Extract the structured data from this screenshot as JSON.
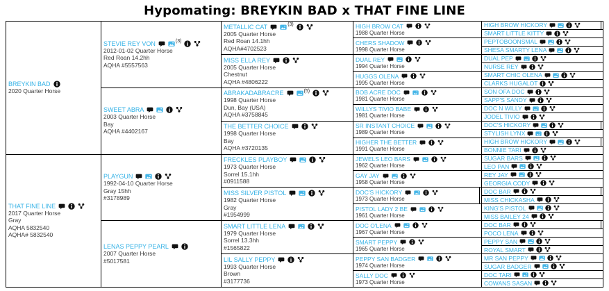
{
  "title": "Hypomating: BREYKIN BAD x THAT FINE LINE",
  "colors": {
    "horse_name_blue": "#35b2e6",
    "photo_icon_blue": "#45b6e8",
    "icon_black": "#111111",
    "border_black": "#000000"
  },
  "pedigree": {
    "generations": [
      {
        "label": "generation-1",
        "cells": [
          {
            "name": "BREYKIN BAD",
            "icons": [
              "info-icon"
            ],
            "details": [
              "2020 Quarter Horse"
            ]
          },
          {
            "name": "THAT FINE LINE",
            "icons": [
              "comment-icon",
              "info-icon",
              "pedigree-icon"
            ],
            "details": [
              "2017 Quarter Horse",
              "Gray",
              "AQHA 5832540",
              "AQHA# 5832540"
            ]
          }
        ]
      },
      {
        "label": "generation-2",
        "cells": [
          {
            "name": "STEVIE REY VON",
            "icons": [
              "comment-icon",
              "photos-icon",
              "info-icon",
              "pedigree-icon"
            ],
            "photos_count": "(3)",
            "details": [
              "2012-01-02 Quarter Horse",
              "Red Roan 14.2hh",
              "AQHA #5557563"
            ]
          },
          {
            "name": "SWEET ABRA",
            "icons": [
              "comment-icon",
              "photos-icon",
              "info-icon",
              "pedigree-icon"
            ],
            "details": [
              "2003 Quarter Horse",
              "Bay",
              "AQHA #4402167"
            ]
          },
          {
            "name": "PLAYGUN",
            "icons": [
              "comment-icon",
              "photos-icon",
              "info-icon",
              "pedigree-icon"
            ],
            "details": [
              "1992-04-10 Quarter Horse",
              "Gray 15hh",
              "#3178989"
            ]
          },
          {
            "name": "LENAS PEPPY PEARL",
            "icons": [
              "comment-icon",
              "info-icon"
            ],
            "details": [
              "2007 Quarter Horse",
              "#5017581"
            ]
          }
        ]
      },
      {
        "label": "generation-3",
        "cells": [
          {
            "name": "METALLIC CAT",
            "icons": [
              "comment-icon",
              "photos-icon",
              "info-icon",
              "pedigree-icon"
            ],
            "photos_count": "(3)",
            "details": [
              "2005 Quarter Horse",
              "Red Roan 14.1hh",
              "AQHA#4702523"
            ]
          },
          {
            "name": "MISS ELLA REY",
            "icons": [
              "comment-icon",
              "info-icon",
              "pedigree-icon"
            ],
            "details": [
              "2005 Quarter Horse",
              "Chestnut",
              "AQHA #4806222"
            ]
          },
          {
            "name": "ABRAKADABRACRE",
            "icons": [
              "comment-icon",
              "photos-icon",
              "info-icon",
              "pedigree-icon"
            ],
            "photos_count": "(5)",
            "details": [
              "1998 Quarter Horse",
              "Dun, Bay (USA)",
              "AQHA #3758845"
            ]
          },
          {
            "name": "THE BETTER CHOICE",
            "icons": [
              "comment-icon",
              "info-icon",
              "pedigree-icon"
            ],
            "details": [
              "1998 Quarter Horse",
              "Bay",
              "AQHA #3720135"
            ]
          },
          {
            "name": "FRECKLES PLAYBOY",
            "icons": [
              "comment-icon",
              "photos-icon",
              "info-icon",
              "pedigree-icon"
            ],
            "details": [
              "1973 Quarter Horse",
              "Sorrel 15.1hh",
              "#0911588"
            ]
          },
          {
            "name": "MISS SILVER PISTOL",
            "icons": [
              "comment-icon",
              "photos-icon",
              "info-icon",
              "pedigree-icon"
            ],
            "details": [
              "1982 Quarter Horse",
              "Gray",
              "#1954999"
            ]
          },
          {
            "name": "SMART LITTLE LENA",
            "icons": [
              "comment-icon",
              "photos-icon",
              "info-icon",
              "pedigree-icon"
            ],
            "details": [
              "1979 Quarter Horse",
              "Sorrel 13.3hh",
              "#1565822"
            ]
          },
          {
            "name": "LIL SALLY PEPPY",
            "icons": [
              "comment-icon",
              "info-icon",
              "pedigree-icon"
            ],
            "details": [
              "1993 Quarter Horse",
              "Brown",
              "#3177736"
            ]
          }
        ]
      },
      {
        "label": "generation-4",
        "cells": [
          {
            "name": "HIGH BROW CAT",
            "icons": [
              "comment-icon",
              "info-icon",
              "pedigree-icon"
            ],
            "details": [
              "1988 Quarter Horse"
            ]
          },
          {
            "name": "CHERS SHADOW",
            "icons": [
              "comment-icon",
              "info-icon",
              "pedigree-icon"
            ],
            "details": [
              "1998 Quarter Horse"
            ]
          },
          {
            "name": "DUAL REY",
            "icons": [
              "comment-icon",
              "photos-icon",
              "info-icon",
              "pedigree-icon"
            ],
            "details": [
              "1994 Quarter Horse"
            ]
          },
          {
            "name": "HUGGS OLENA",
            "icons": [
              "comment-icon",
              "info-icon",
              "pedigree-icon"
            ],
            "details": [
              "1995 Quarter Horse"
            ]
          },
          {
            "name": "BOB ACRE DOC",
            "icons": [
              "comment-icon",
              "photos-icon",
              "info-icon",
              "pedigree-icon"
            ],
            "details": [
              "1981 Quarter Horse"
            ]
          },
          {
            "name": "WILLYS TIVIO BABE",
            "icons": [
              "comment-icon",
              "info-icon",
              "pedigree-icon"
            ],
            "details": [
              "1981 Quarter Horse"
            ]
          },
          {
            "name": "SR INSTANT CHOICE",
            "icons": [
              "comment-icon",
              "photos-icon",
              "info-icon",
              "pedigree-icon"
            ],
            "details": [
              "1989 Quarter Horse"
            ]
          },
          {
            "name": "HIGHER THE BETTER",
            "icons": [
              "comment-icon",
              "info-icon",
              "pedigree-icon"
            ],
            "details": [
              "1991 Quarter Horse"
            ]
          },
          {
            "name": "JEWELS LEO BARS",
            "icons": [
              "comment-icon",
              "photos-icon",
              "info-icon",
              "pedigree-icon"
            ],
            "details": [
              "1962 Quarter Horse"
            ]
          },
          {
            "name": "GAY JAY",
            "icons": [
              "comment-icon",
              "photos-icon",
              "info-icon",
              "pedigree-icon"
            ],
            "details": [
              "1958 Quarter Horse"
            ]
          },
          {
            "name": "DOC'S HICKORY",
            "icons": [
              "comment-icon",
              "photos-icon",
              "info-icon",
              "pedigree-icon"
            ],
            "details": [
              "1973 Quarter Horse"
            ],
            "highlight": true
          },
          {
            "name": "PISTOL LADY 2 BE",
            "icons": [
              "comment-icon",
              "photos-icon",
              "info-icon",
              "pedigree-icon"
            ],
            "details": [
              "1961 Quarter Horse"
            ]
          },
          {
            "name": "DOC O'LENA",
            "icons": [
              "comment-icon",
              "photos-icon",
              "info-icon",
              "pedigree-icon"
            ],
            "details": [
              "1967 Quarter Horse"
            ]
          },
          {
            "name": "SMART PEPPY",
            "icons": [
              "comment-icon",
              "info-icon",
              "pedigree-icon"
            ],
            "details": [
              "1965 Quarter Horse"
            ]
          },
          {
            "name": "PEPPY SAN BADGER",
            "icons": [
              "comment-icon",
              "photos-icon",
              "info-icon",
              "pedigree-icon"
            ],
            "details": [
              "1974 Quarter Horse"
            ]
          },
          {
            "name": "SALLY DOC",
            "icons": [
              "comment-icon",
              "info-icon",
              "pedigree-icon"
            ],
            "details": [
              "1973 Quarter Horse"
            ]
          }
        ]
      },
      {
        "label": "generation-5",
        "cells": [
          {
            "name": "HIGH BROW HICKORY",
            "icons": [
              "comment-icon",
              "photos-icon",
              "info-icon",
              "pedigree-icon"
            ],
            "highlight": true
          },
          {
            "name": "SMART LITTLE KITTY",
            "icons": [
              "comment-icon",
              "info-icon",
              "pedigree-icon"
            ]
          },
          {
            "name": "PEPTOBOONSMAL",
            "icons": [
              "comment-icon",
              "photos-icon",
              "info-icon",
              "pedigree-icon"
            ]
          },
          {
            "name": "SHESA SMARTY LENA",
            "icons": [
              "comment-icon",
              "photos-icon",
              "info-icon",
              "pedigree-icon"
            ]
          },
          {
            "name": "DUAL PEP",
            "icons": [
              "comment-icon",
              "photos-icon",
              "info-icon",
              "pedigree-icon"
            ]
          },
          {
            "name": "NURSE REY",
            "icons": [
              "comment-icon",
              "info-icon",
              "pedigree-icon"
            ]
          },
          {
            "name": "SMART CHIC OLENA",
            "icons": [
              "comment-icon",
              "photos-icon",
              "info-icon",
              "pedigree-icon"
            ]
          },
          {
            "name": "CLARKS HUGALOT",
            "icons": [
              "info-icon",
              "pedigree-icon"
            ]
          },
          {
            "name": "SON OFA DOC",
            "icons": [
              "comment-icon",
              "info-icon",
              "pedigree-icon"
            ]
          },
          {
            "name": "SAPP'S SANDY",
            "icons": [
              "comment-icon",
              "info-icon",
              "pedigree-icon"
            ]
          },
          {
            "name": "DOC N WILLY",
            "icons": [
              "comment-icon",
              "photos-icon",
              "info-icon",
              "pedigree-icon"
            ]
          },
          {
            "name": "JODEL TIVIO",
            "icons": [
              "comment-icon",
              "info-icon",
              "pedigree-icon"
            ]
          },
          {
            "name": "DOC'S HICKORY",
            "icons": [
              "comment-icon",
              "photos-icon",
              "info-icon",
              "pedigree-icon"
            ],
            "highlight": true
          },
          {
            "name": "STYLISH LYNX",
            "icons": [
              "comment-icon",
              "photos-icon",
              "info-icon",
              "pedigree-icon"
            ]
          },
          {
            "name": "HIGH BROW HICKORY",
            "icons": [
              "comment-icon",
              "photos-icon",
              "info-icon",
              "pedigree-icon"
            ],
            "highlight": true
          },
          {
            "name": "BONNIE TARI",
            "icons": [
              "comment-icon",
              "info-icon",
              "pedigree-icon"
            ]
          },
          {
            "name": "SUGAR BARS",
            "icons": [
              "comment-icon",
              "photos-icon",
              "info-icon",
              "pedigree-icon"
            ]
          },
          {
            "name": "LEO PAN",
            "icons": [
              "comment-icon",
              "photos-icon",
              "info-icon",
              "pedigree-icon"
            ]
          },
          {
            "name": "REY JAY",
            "icons": [
              "comment-icon",
              "photos-icon",
              "info-icon",
              "pedigree-icon"
            ]
          },
          {
            "name": "GEORGIA CODY",
            "icons": [
              "comment-icon",
              "info-icon",
              "pedigree-icon"
            ]
          },
          {
            "name": "DOC BAR",
            "icons": [
              "comment-icon",
              "info-icon",
              "pedigree-icon"
            ],
            "highlight": true
          },
          {
            "name": "MISS CHICKASHA",
            "icons": [
              "comment-icon",
              "info-icon",
              "pedigree-icon"
            ]
          },
          {
            "name": "KING'S PISTOL",
            "icons": [
              "comment-icon",
              "photos-icon",
              "info-icon",
              "pedigree-icon"
            ]
          },
          {
            "name": "MISS BAILEY 24",
            "icons": [
              "comment-icon",
              "info-icon",
              "pedigree-icon"
            ]
          },
          {
            "name": "DOC BAR",
            "icons": [
              "comment-icon",
              "info-icon",
              "pedigree-icon"
            ],
            "highlight": true
          },
          {
            "name": "POCO LENA",
            "icons": [
              "comment-icon",
              "info-icon",
              "pedigree-icon"
            ]
          },
          {
            "name": "PEPPY SAN",
            "icons": [
              "comment-icon",
              "photos-icon",
              "info-icon",
              "pedigree-icon"
            ]
          },
          {
            "name": "ROYAL SMART",
            "icons": [
              "comment-icon",
              "info-icon",
              "pedigree-icon"
            ]
          },
          {
            "name": "MR SAN PEPPY",
            "icons": [
              "comment-icon",
              "photos-icon",
              "info-icon",
              "pedigree-icon"
            ]
          },
          {
            "name": "SUGAR BADGER",
            "icons": [
              "comment-icon",
              "photos-icon",
              "info-icon",
              "pedigree-icon"
            ]
          },
          {
            "name": "DOC TARI",
            "icons": [
              "comment-icon",
              "photos-icon",
              "info-icon",
              "pedigree-icon"
            ]
          },
          {
            "name": "COWANS SASAN",
            "icons": [
              "comment-icon",
              "info-icon",
              "pedigree-icon"
            ]
          }
        ]
      }
    ]
  }
}
